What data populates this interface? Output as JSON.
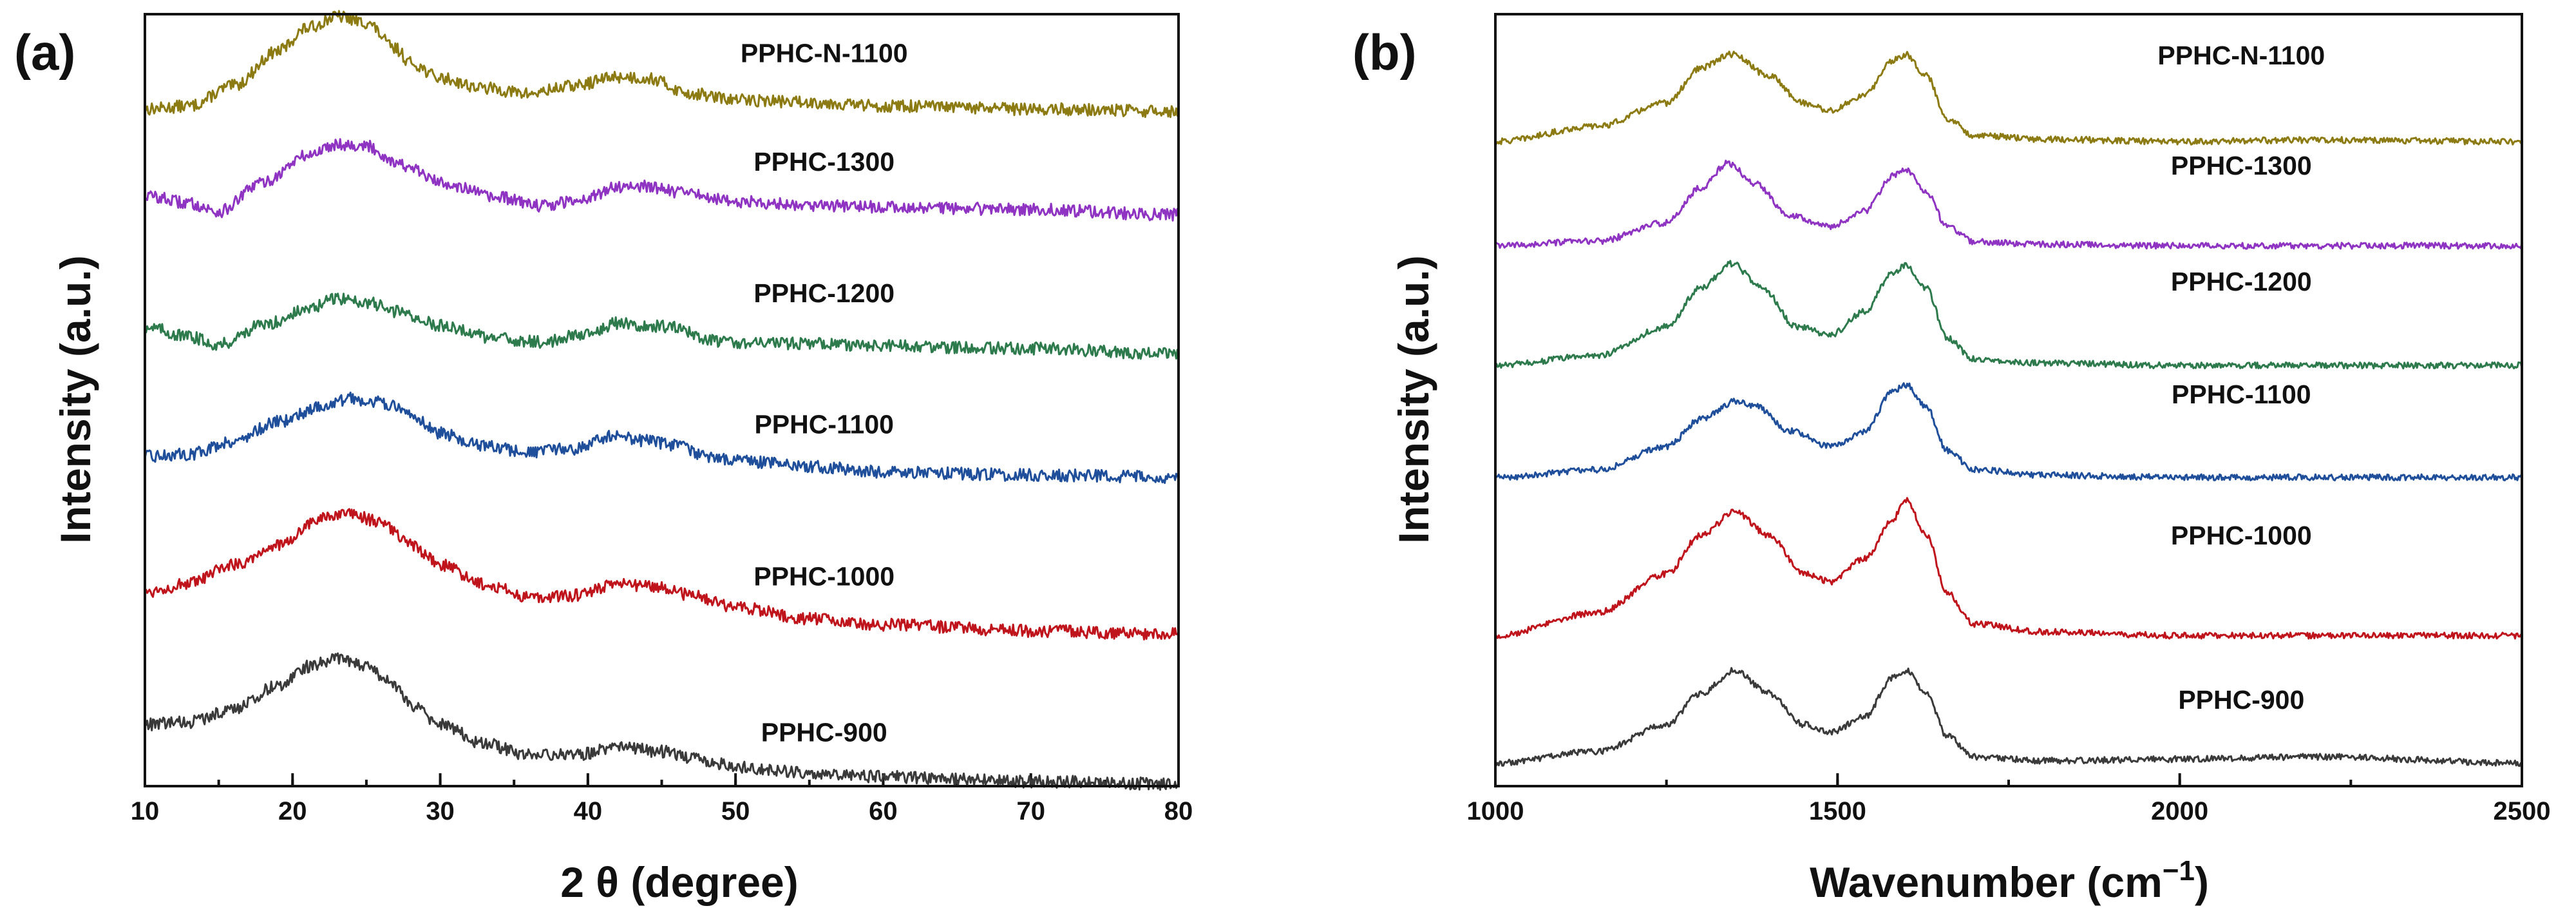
{
  "chart_data": [
    {
      "type": "line",
      "panel_label": "(a)",
      "title": "",
      "xlabel": "2 θ (degree)",
      "ylabel": "Intensity (a.u.)",
      "xlim": [
        10,
        80
      ],
      "ylim": [
        0,
        1
      ],
      "xticks": [
        10,
        20,
        30,
        40,
        50,
        60,
        70,
        80
      ],
      "x_minor_step": 5,
      "y_ticks_shown": false,
      "grid": false,
      "legend": "inline labels at right",
      "note": "Offset stacked XRD patterns; y values in normalized stacked intensity units (0 = bottom of axis, 1 = top of axis).",
      "series": [
        {
          "name": "PPHC-N-1100",
          "color": "#8c7a12",
          "offset": 0.877,
          "label_x": 56,
          "label_y": 0.938,
          "points": [
            [
              10,
              0.0
            ],
            [
              13,
              0.004
            ],
            [
              16,
              0.03
            ],
            [
              19,
              0.075
            ],
            [
              21,
              0.105
            ],
            [
              23,
              0.12
            ],
            [
              25,
              0.112
            ],
            [
              27,
              0.078
            ],
            [
              28,
              0.06
            ],
            [
              30,
              0.04
            ],
            [
              33,
              0.027
            ],
            [
              36,
              0.02
            ],
            [
              39,
              0.03
            ],
            [
              42,
              0.042
            ],
            [
              44,
              0.04
            ],
            [
              47,
              0.02
            ],
            [
              50,
              0.012
            ],
            [
              55,
              0.009
            ],
            [
              60,
              0.004
            ],
            [
              70,
              0.0
            ],
            [
              80,
              -0.003
            ]
          ]
        },
        {
          "name": "PPHC-1300",
          "color": "#8f34c2",
          "offset": 0.747,
          "label_x": 56,
          "label_y": 0.797,
          "points": [
            [
              10,
              0.018
            ],
            [
              13,
              0.008
            ],
            [
              15,
              -0.003
            ],
            [
              18,
              0.035
            ],
            [
              21,
              0.07
            ],
            [
              23,
              0.085
            ],
            [
              25,
              0.082
            ],
            [
              27,
              0.062
            ],
            [
              28,
              0.052
            ],
            [
              30,
              0.035
            ],
            [
              34,
              0.015
            ],
            [
              37,
              0.005
            ],
            [
              40,
              0.015
            ],
            [
              42,
              0.03
            ],
            [
              44,
              0.03
            ],
            [
              47,
              0.02
            ],
            [
              50,
              0.01
            ],
            [
              55,
              0.006
            ],
            [
              60,
              0.003
            ],
            [
              70,
              0.0
            ],
            [
              80,
              -0.007
            ]
          ]
        },
        {
          "name": "PPHC-1200",
          "color": "#2d7a4c",
          "offset": 0.567,
          "label_x": 56,
          "label_y": 0.627,
          "points": [
            [
              10,
              0.028
            ],
            [
              13,
              0.015
            ],
            [
              15,
              0.005
            ],
            [
              18,
              0.03
            ],
            [
              21,
              0.05
            ],
            [
              23,
              0.065
            ],
            [
              25,
              0.06
            ],
            [
              27,
              0.048
            ],
            [
              30,
              0.03
            ],
            [
              34,
              0.012
            ],
            [
              37,
              0.008
            ],
            [
              40,
              0.02
            ],
            [
              42,
              0.033
            ],
            [
              44,
              0.03
            ],
            [
              46,
              0.027
            ],
            [
              48,
              0.01
            ],
            [
              50,
              0.008
            ],
            [
              55,
              0.006
            ],
            [
              60,
              0.003
            ],
            [
              70,
              0.0
            ],
            [
              80,
              -0.007
            ]
          ]
        },
        {
          "name": "PPHC-1100",
          "color": "#1f4f9a",
          "offset": 0.397,
          "label_x": 56,
          "label_y": 0.457,
          "points": [
            [
              10,
              0.03
            ],
            [
              13,
              0.033
            ],
            [
              16,
              0.05
            ],
            [
              19,
              0.075
            ],
            [
              22,
              0.095
            ],
            [
              24,
              0.105
            ],
            [
              26,
              0.1
            ],
            [
              28,
              0.085
            ],
            [
              30,
              0.06
            ],
            [
              33,
              0.043
            ],
            [
              36,
              0.035
            ],
            [
              39,
              0.04
            ],
            [
              42,
              0.057
            ],
            [
              44,
              0.05
            ],
            [
              46,
              0.045
            ],
            [
              48,
              0.03
            ],
            [
              50,
              0.025
            ],
            [
              55,
              0.017
            ],
            [
              60,
              0.01
            ],
            [
              70,
              0.006
            ],
            [
              80,
              0.003
            ]
          ]
        },
        {
          "name": "PPHC-1000",
          "color": "#c0141c",
          "offset": 0.197,
          "label_x": 56,
          "label_y": 0.26,
          "points": [
            [
              10,
              0.055
            ],
            [
              13,
              0.065
            ],
            [
              16,
              0.09
            ],
            [
              19,
              0.115
            ],
            [
              22,
              0.15
            ],
            [
              24,
              0.155
            ],
            [
              26,
              0.145
            ],
            [
              28,
              0.115
            ],
            [
              30,
              0.09
            ],
            [
              33,
              0.065
            ],
            [
              36,
              0.048
            ],
            [
              39,
              0.05
            ],
            [
              42,
              0.065
            ],
            [
              45,
              0.06
            ],
            [
              47,
              0.05
            ],
            [
              50,
              0.035
            ],
            [
              55,
              0.02
            ],
            [
              60,
              0.012
            ],
            [
              70,
              0.004
            ],
            [
              80,
              0.0
            ]
          ]
        },
        {
          "name": "PPHC-900",
          "color": "#3a3a3a",
          "offset": 0.0,
          "label_x": 56,
          "label_y": 0.058,
          "points": [
            [
              10,
              0.08
            ],
            [
              13,
              0.083
            ],
            [
              16,
              0.1
            ],
            [
              19,
              0.13
            ],
            [
              21,
              0.155
            ],
            [
              23,
              0.165
            ],
            [
              25,
              0.155
            ],
            [
              27,
              0.13
            ],
            [
              28,
              0.105
            ],
            [
              30,
              0.08
            ],
            [
              33,
              0.055
            ],
            [
              36,
              0.04
            ],
            [
              39,
              0.04
            ],
            [
              42,
              0.05
            ],
            [
              45,
              0.045
            ],
            [
              48,
              0.033
            ],
            [
              50,
              0.025
            ],
            [
              55,
              0.017
            ],
            [
              60,
              0.012
            ],
            [
              70,
              0.006
            ],
            [
              80,
              0.003
            ]
          ]
        }
      ]
    },
    {
      "type": "line",
      "panel_label": "(b)",
      "title": "",
      "xlabel": "Wavenumber (cm",
      "xlabel_sup": "−1",
      "xlabel_end": ")",
      "ylabel": "Intensity (a.u.)",
      "xlim": [
        1000,
        2500
      ],
      "ylim": [
        0,
        1
      ],
      "xticks": [
        1000,
        1500,
        2000,
        2500
      ],
      "x_minor_step": 250,
      "y_ticks_shown": false,
      "grid": false,
      "legend": "inline labels at right",
      "note": "Offset stacked Raman spectra (D band ~1350, G band ~1600); y values in normalized stacked intensity units.",
      "series": [
        {
          "name": "PPHC-N-1100",
          "color": "#8c7a12",
          "offset": 0.835,
          "label_x": 2090,
          "label_y": 0.935,
          "points": [
            [
              1000,
              0.0
            ],
            [
              1150,
              0.02
            ],
            [
              1250,
              0.05
            ],
            [
              1300,
              0.095
            ],
            [
              1345,
              0.113
            ],
            [
              1400,
              0.085
            ],
            [
              1450,
              0.05
            ],
            [
              1490,
              0.04
            ],
            [
              1540,
              0.06
            ],
            [
              1580,
              0.105
            ],
            [
              1600,
              0.113
            ],
            [
              1630,
              0.085
            ],
            [
              1660,
              0.03
            ],
            [
              1700,
              0.008
            ],
            [
              1800,
              0.003
            ],
            [
              2000,
              0.0
            ],
            [
              2200,
              0.002
            ],
            [
              2500,
              0.0
            ]
          ]
        },
        {
          "name": "PPHC-1300",
          "color": "#8f34c2",
          "offset": 0.7,
          "label_x": 2090,
          "label_y": 0.792,
          "points": [
            [
              1000,
              0.0
            ],
            [
              1150,
              0.006
            ],
            [
              1250,
              0.03
            ],
            [
              1300,
              0.075
            ],
            [
              1340,
              0.107
            ],
            [
              1380,
              0.08
            ],
            [
              1430,
              0.04
            ],
            [
              1490,
              0.025
            ],
            [
              1540,
              0.045
            ],
            [
              1580,
              0.09
            ],
            [
              1600,
              0.098
            ],
            [
              1630,
              0.07
            ],
            [
              1660,
              0.025
            ],
            [
              1700,
              0.005
            ],
            [
              1800,
              0.002
            ],
            [
              2000,
              0.0
            ],
            [
              2500,
              0.0
            ]
          ]
        },
        {
          "name": "PPHC-1200",
          "color": "#2d7a4c",
          "offset": 0.545,
          "label_x": 2090,
          "label_y": 0.642,
          "points": [
            [
              1000,
              0.0
            ],
            [
              1150,
              0.013
            ],
            [
              1250,
              0.05
            ],
            [
              1300,
              0.1
            ],
            [
              1345,
              0.132
            ],
            [
              1390,
              0.1
            ],
            [
              1440,
              0.05
            ],
            [
              1490,
              0.04
            ],
            [
              1540,
              0.07
            ],
            [
              1580,
              0.12
            ],
            [
              1600,
              0.13
            ],
            [
              1630,
              0.1
            ],
            [
              1660,
              0.035
            ],
            [
              1700,
              0.008
            ],
            [
              1800,
              0.003
            ],
            [
              2000,
              0.0
            ],
            [
              2500,
              0.0
            ]
          ]
        },
        {
          "name": "PPHC-1100",
          "color": "#1f4f9a",
          "offset": 0.4,
          "label_x": 2090,
          "label_y": 0.496,
          "points": [
            [
              1000,
              0.0
            ],
            [
              1150,
              0.01
            ],
            [
              1250,
              0.04
            ],
            [
              1300,
              0.075
            ],
            [
              1350,
              0.098
            ],
            [
              1380,
              0.092
            ],
            [
              1430,
              0.06
            ],
            [
              1490,
              0.04
            ],
            [
              1540,
              0.06
            ],
            [
              1580,
              0.11
            ],
            [
              1600,
              0.12
            ],
            [
              1630,
              0.09
            ],
            [
              1660,
              0.035
            ],
            [
              1700,
              0.01
            ],
            [
              1800,
              0.003
            ],
            [
              2000,
              0.0
            ],
            [
              2500,
              0.0
            ]
          ]
        },
        {
          "name": "PPHC-1000",
          "color": "#c0141c",
          "offset": 0.195,
          "label_x": 2090,
          "label_y": 0.313,
          "points": [
            [
              1000,
              0.0
            ],
            [
              1150,
              0.03
            ],
            [
              1250,
              0.08
            ],
            [
              1300,
              0.13
            ],
            [
              1350,
              0.16
            ],
            [
              1400,
              0.13
            ],
            [
              1450,
              0.08
            ],
            [
              1490,
              0.07
            ],
            [
              1540,
              0.1
            ],
            [
              1580,
              0.15
            ],
            [
              1600,
              0.175
            ],
            [
              1630,
              0.13
            ],
            [
              1660,
              0.055
            ],
            [
              1700,
              0.015
            ],
            [
              1800,
              0.005
            ],
            [
              2000,
              0.0
            ],
            [
              2500,
              0.0
            ]
          ]
        },
        {
          "name": "PPHC-900",
          "color": "#3a3a3a",
          "offset": 0.03,
          "label_x": 2090,
          "label_y": 0.1,
          "points": [
            [
              1000,
              0.0
            ],
            [
              1150,
              0.015
            ],
            [
              1250,
              0.05
            ],
            [
              1300,
              0.09
            ],
            [
              1350,
              0.12
            ],
            [
              1400,
              0.09
            ],
            [
              1450,
              0.05
            ],
            [
              1490,
              0.04
            ],
            [
              1540,
              0.06
            ],
            [
              1580,
              0.11
            ],
            [
              1600,
              0.12
            ],
            [
              1630,
              0.09
            ],
            [
              1660,
              0.035
            ],
            [
              1700,
              0.008
            ],
            [
              1800,
              0.003
            ],
            [
              2000,
              0.005
            ],
            [
              2200,
              0.008
            ],
            [
              2500,
              0.0
            ]
          ]
        }
      ]
    }
  ]
}
